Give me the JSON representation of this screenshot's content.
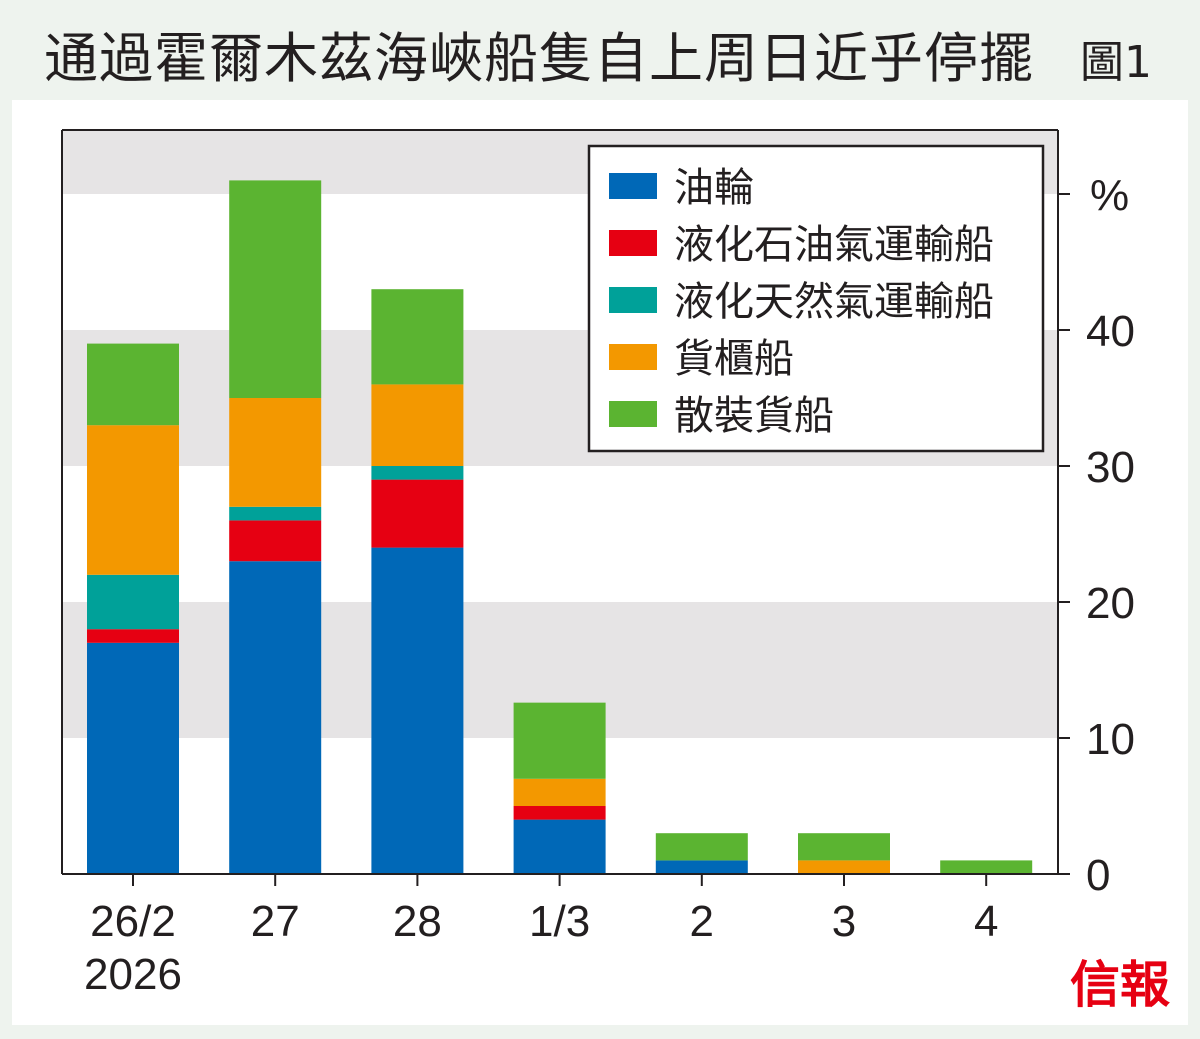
{
  "title": "通過霍爾木茲海峽船隻自上周日近乎停擺",
  "figure_label": "圖1",
  "logo": "信報",
  "chart_data": {
    "type": "bar",
    "stacked": true,
    "title": "通過霍爾木茲海峽船隻自上周日近乎停擺",
    "ylabel": "%",
    "ylim": [
      0,
      55
    ],
    "yticks": [
      0,
      10,
      20,
      30,
      40
    ],
    "grid": "alternating bands",
    "legend_position": "top-right",
    "categories": [
      "26/2",
      "27",
      "28",
      "1/3",
      "2",
      "3",
      "4"
    ],
    "category_sublabels": [
      "2026",
      "",
      "",
      "",
      "",
      "",
      ""
    ],
    "series": [
      {
        "name": "油輪",
        "color": "#0068b7",
        "values": [
          17,
          23,
          24,
          4,
          1,
          0,
          0
        ]
      },
      {
        "name": "液化石油氣運輸船",
        "color": "#e60012",
        "values": [
          1,
          3,
          5,
          1,
          0,
          0,
          0
        ]
      },
      {
        "name": "液化天然氣運輸船",
        "color": "#00a199",
        "values": [
          4,
          1,
          1,
          0,
          0,
          0,
          0
        ]
      },
      {
        "name": "貨櫃船",
        "color": "#f39800",
        "values": [
          11,
          8,
          6,
          2,
          0,
          1,
          0
        ]
      },
      {
        "name": "散裝貨船",
        "color": "#5bb431",
        "values": [
          6,
          16,
          7,
          5.6,
          2,
          2,
          1
        ]
      }
    ]
  }
}
